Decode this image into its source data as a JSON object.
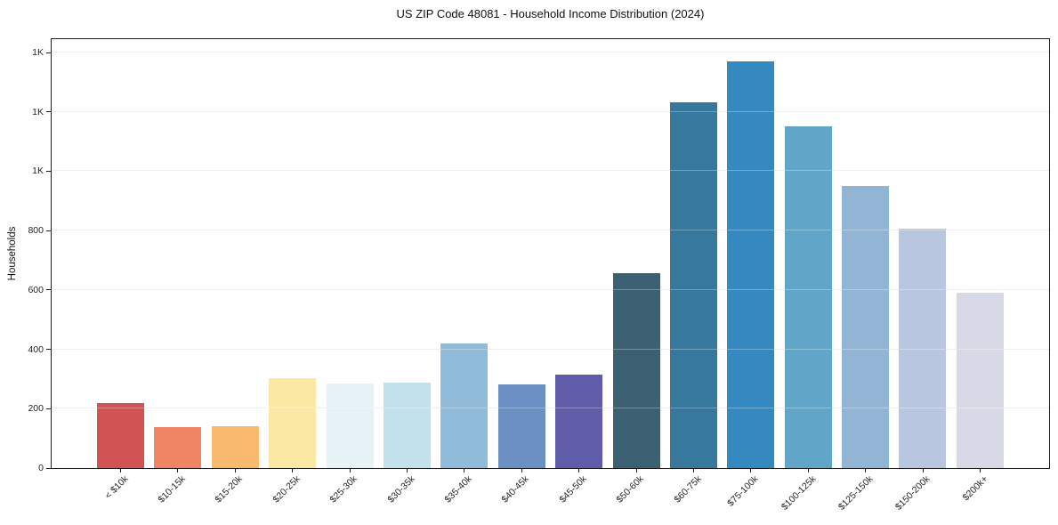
{
  "chart_data": {
    "type": "bar",
    "title": "US ZIP Code 48081 - Household Income Distribution (2024)",
    "xlabel": "",
    "ylabel": "Households",
    "categories": [
      "< $10k",
      "$10-15k",
      "$15-20k",
      "$20-25k",
      "$25-30k",
      "$30-35k",
      "$35-40k",
      "$40-45k",
      "$45-50k",
      "$50-60k",
      "$60-75k",
      "$75-100k",
      "$100-125k",
      "$125-150k",
      "$150-200k",
      "$200k+"
    ],
    "values": [
      220,
      138,
      142,
      304,
      286,
      287,
      419,
      281,
      314,
      658,
      1231,
      1369,
      1152,
      950,
      806,
      590
    ],
    "bar_colors": [
      "#d25353",
      "#f08566",
      "#f9b96e",
      "#fce8a5",
      "#e6f2f6",
      "#c3e1ed",
      "#90bcda",
      "#6b90c4",
      "#5f5caa",
      "#3a6072",
      "#37789f",
      "#3489c0",
      "#61a6c9",
      "#92b5d5",
      "#b8c7df",
      "#d8d9e6"
    ],
    "ylim": [
      0,
      1445
    ],
    "yticks": {
      "values": [
        0,
        200,
        400,
        600,
        800,
        1000,
        1200,
        1400
      ],
      "labels": [
        "0",
        "200",
        "400",
        "600",
        "800",
        "1K",
        "1K",
        "1K"
      ]
    },
    "grid": "horizontal",
    "legend": "none",
    "colors": {
      "axis": "#1c1c1c",
      "grid": "#e7e8ec",
      "text": "#262626",
      "background": "#ffffff"
    }
  }
}
